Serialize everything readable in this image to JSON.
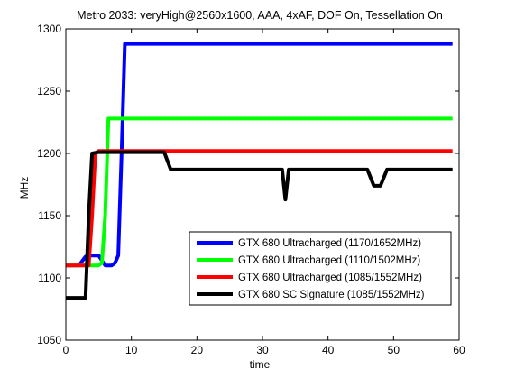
{
  "chart_data": {
    "type": "line",
    "title": "Metro 2033: veryHigh@2560x1600, AAA, 4xAF, DOF On, Tessellation On",
    "xlabel": "time",
    "ylabel": "MHz",
    "xlim": [
      0,
      60
    ],
    "ylim": [
      1050,
      1300
    ],
    "xticks": [
      0,
      10,
      20,
      30,
      40,
      50,
      60
    ],
    "yticks": [
      1050,
      1100,
      1150,
      1200,
      1250,
      1300
    ],
    "grid": false,
    "legend_position": "bottom-right",
    "series": [
      {
        "name": "GTX 680 Ultracharged (1170/1652MHz)",
        "color": "#0000ff",
        "x": [
          0,
          2,
          3,
          4,
          5,
          6,
          7,
          7.5,
          8,
          8.5,
          9,
          9.5,
          59
        ],
        "y": [
          1110,
          1110,
          1117,
          1118,
          1118,
          1110,
          1110,
          1112,
          1118,
          1200,
          1288,
          1288,
          1288
        ]
      },
      {
        "name": "GTX 680 Ultracharged (1110/1502MHz)",
        "color": "#00ff00",
        "x": [
          0,
          5,
          5.5,
          6,
          6.5,
          7,
          59
        ],
        "y": [
          1110,
          1110,
          1112,
          1150,
          1228,
          1228,
          1228
        ]
      },
      {
        "name": "GTX 680 Ultracharged (1085/1552MHz)",
        "color": "#ff0000",
        "x": [
          0,
          3.5,
          4,
          4.5,
          5,
          59
        ],
        "y": [
          1110,
          1110,
          1150,
          1200,
          1202,
          1202
        ]
      },
      {
        "name": "GTX 680 SC Signature (1085/1552MHz)",
        "color": "#000000",
        "x": [
          0,
          3,
          3.5,
          4,
          5,
          15,
          16,
          33,
          33.5,
          34,
          46,
          47,
          48,
          49,
          59
        ],
        "y": [
          1084,
          1084,
          1150,
          1200,
          1201,
          1201,
          1187,
          1187,
          1163,
          1187,
          1187,
          1174,
          1174,
          1187,
          1187
        ]
      }
    ]
  }
}
